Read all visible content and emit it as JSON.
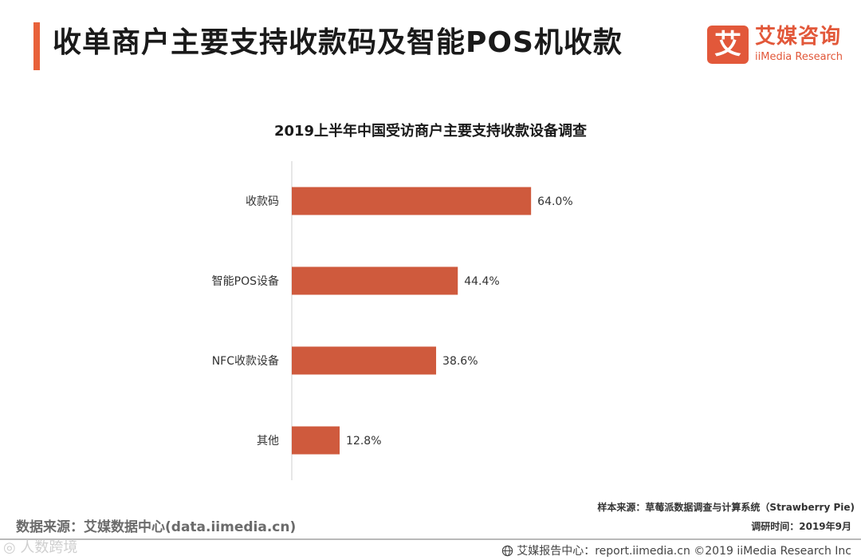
{
  "header": {
    "title": "收单商户主要支持收款码及智能POS机收款"
  },
  "logo": {
    "mark": "艾",
    "name": "艾媒咨询",
    "sub": "iiMedia Research"
  },
  "chart_data": {
    "type": "bar",
    "orientation": "horizontal",
    "title": "2019上半年中国受访商户主要支持收款设备调查",
    "categories": [
      "收款码",
      "智能POS设备",
      "NFC收款设备",
      "其他"
    ],
    "values": [
      64.0,
      44.4,
      38.6,
      12.8
    ],
    "labels": [
      "64.0%",
      "44.4%",
      "38.6%",
      "12.8%"
    ],
    "xlim": [
      0,
      100
    ],
    "xlabel": "",
    "ylabel": "",
    "grid": false,
    "legend": "none",
    "bar_color": "#cf5a3d"
  },
  "footer": {
    "source": "数据来源：艾媒数据中心(data.iimedia.cn)",
    "sample": "样本来源：草莓派数据调查与计算系统（Strawberry Pie)",
    "survey_time": "调研时间：2019年9月",
    "watermark": "◎ 人数跨境",
    "report": "艾媒报告中心：report.iimedia.cn  ©2019  iiMedia Research  Inc"
  },
  "colors": {
    "accent": "#e8613a",
    "logo": "#e2583a",
    "bar": "#cf5a3d",
    "axis": "#cfcfcf"
  }
}
